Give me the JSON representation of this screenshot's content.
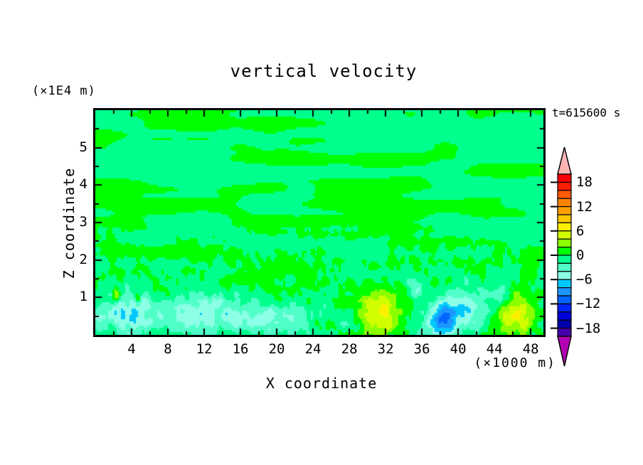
{
  "header": {
    "title": "vertical velocity",
    "time_label": "t=615600 s"
  },
  "axes": {
    "x_label": "X coordinate",
    "x_unit_label": "(×1000 m)",
    "y_label": "Z coordinate",
    "y_unit_label": "(×1E4 m)"
  },
  "chart_data": {
    "type": "filled_contour",
    "title": "vertical velocity",
    "time_annotation": "t=615600 s",
    "quantity": "vertical velocity",
    "x_axis": {
      "label": "X coordinate",
      "unit": "×1000 m",
      "range": [
        0,
        49.4
      ],
      "major_tick_step": 4,
      "minor_tick_step": 2,
      "tick_values": [
        4,
        8,
        12,
        16,
        20,
        24,
        28,
        32,
        36,
        40,
        44,
        48
      ],
      "tick_labels": [
        "4",
        "8",
        "12",
        "16",
        "20",
        "24",
        "28",
        "32",
        "36",
        "40",
        "44",
        "48"
      ]
    },
    "z_axis": {
      "label": "Z coordinate",
      "unit": "×1E4 m",
      "range": [
        0,
        6
      ],
      "major_tick_step": 1,
      "minor_tick_step": 0.5,
      "tick_values": [
        5,
        4,
        3,
        2,
        1
      ],
      "tick_labels": [
        "5",
        "4",
        "3",
        "2",
        "1"
      ]
    },
    "contour_interval": 2,
    "level_range": [
      -20,
      20
    ],
    "palette": [
      {
        "min": -20,
        "max": -18,
        "color": "#4600aa"
      },
      {
        "min": -18,
        "max": -16,
        "color": "#0000aa"
      },
      {
        "min": -16,
        "max": -14,
        "color": "#0000dc"
      },
      {
        "min": -14,
        "max": -12,
        "color": "#0023ff"
      },
      {
        "min": -12,
        "max": -10,
        "color": "#0064ff"
      },
      {
        "min": -10,
        "max": -8,
        "color": "#1e96ff"
      },
      {
        "min": -8,
        "max": -6,
        "color": "#00c8ff"
      },
      {
        "min": -6,
        "max": -4,
        "color": "#8cffe6"
      },
      {
        "min": -4,
        "max": -2,
        "color": "#50ffc8"
      },
      {
        "min": -2,
        "max": 0,
        "color": "#00ff8c"
      },
      {
        "min": 0,
        "max": 2,
        "color": "#00ff00"
      },
      {
        "min": 2,
        "max": 4,
        "color": "#8cff00"
      },
      {
        "min": 4,
        "max": 6,
        "color": "#d2ff00"
      },
      {
        "min": 6,
        "max": 8,
        "color": "#fff000"
      },
      {
        "min": 8,
        "max": 10,
        "color": "#ffc800"
      },
      {
        "min": 10,
        "max": 12,
        "color": "#ffa000"
      },
      {
        "min": 12,
        "max": 14,
        "color": "#ff8200"
      },
      {
        "min": 14,
        "max": 16,
        "color": "#ff5a00"
      },
      {
        "min": 16,
        "max": 18,
        "color": "#ff1e00"
      },
      {
        "min": 18,
        "max": 20,
        "color": "#fa0000"
      }
    ],
    "colorbar": {
      "over_color": "#ffb4b4",
      "under_color": "#b400b4",
      "tick_values": [
        18,
        12,
        6,
        0,
        -6,
        -12,
        -18
      ],
      "tick_labels": [
        "18",
        "12",
        "6",
        "0",
        "−6",
        "−12",
        "−18"
      ]
    },
    "field": {
      "background_value_range": [
        -2,
        2
      ],
      "noise": {
        "streak_octaves": [
          {
            "fx": 0.1,
            "fz": 3.2,
            "amp": 1.15,
            "seed": 11
          },
          {
            "fx": 0.26,
            "fz": 4.6,
            "amp": 0.55,
            "seed": 23
          }
        ],
        "speckle_octaves": [
          {
            "fx": 1.1,
            "fz": 3.5,
            "amp": 1.35,
            "seed": 37
          },
          {
            "fx": 2.3,
            "fz": 6.5,
            "amp": 0.95,
            "seed": 51
          }
        ],
        "speckle_blend_z": [
          1.1,
          3.2
        ],
        "surface_bias": {
          "amp": -0.85,
          "z_center": 0.35,
          "z_sigma": 0.6
        }
      },
      "features": [
        {
          "kind": "updraft-maximum",
          "x": 31.3,
          "z": 0.55,
          "sigma_x": 2.3,
          "sigma_z": 0.55,
          "peak": 7.2
        },
        {
          "kind": "updraft-maximum",
          "x": 46.3,
          "z": 0.5,
          "sigma_x": 2.0,
          "sigma_z": 0.5,
          "peak": 7.2
        },
        {
          "kind": "downdraft-minimum",
          "x": 38.3,
          "z": 0.45,
          "sigma_x": 1.7,
          "sigma_z": 0.5,
          "peak": -8.8
        },
        {
          "kind": "downdraft-band",
          "x": 3.5,
          "z": 0.6,
          "sigma_x": 3.2,
          "sigma_z": 0.5,
          "peak": -5.5
        },
        {
          "kind": "downdraft-band",
          "x": 11.5,
          "z": 0.6,
          "sigma_x": 4.5,
          "sigma_z": 0.5,
          "peak": -4.5
        },
        {
          "kind": "downdraft-band",
          "x": 19.5,
          "z": 0.45,
          "sigma_x": 4.0,
          "sigma_z": 0.4,
          "peak": -3.2
        },
        {
          "kind": "downdraft-patch",
          "x": 35.2,
          "z": 1.25,
          "sigma_x": 1.0,
          "sigma_z": 0.32,
          "peak": -4.0
        },
        {
          "kind": "downdraft-patch",
          "x": 41.2,
          "z": 0.8,
          "sigma_x": 2.2,
          "sigma_z": 0.55,
          "peak": -4.5
        },
        {
          "kind": "downdraft-patch",
          "x": 44.7,
          "z": 1.1,
          "sigma_x": 1.3,
          "sigma_z": 0.33,
          "peak": -4.5
        },
        {
          "kind": "updraft-speck",
          "x": 2.3,
          "z": 1.05,
          "sigma_x": 0.4,
          "sigma_z": 0.18,
          "peak": 6.5
        },
        {
          "kind": "updraft-speck",
          "x": 4.7,
          "z": 0.95,
          "sigma_x": 0.3,
          "sigma_z": 0.16,
          "peak": 5.5
        }
      ]
    }
  }
}
